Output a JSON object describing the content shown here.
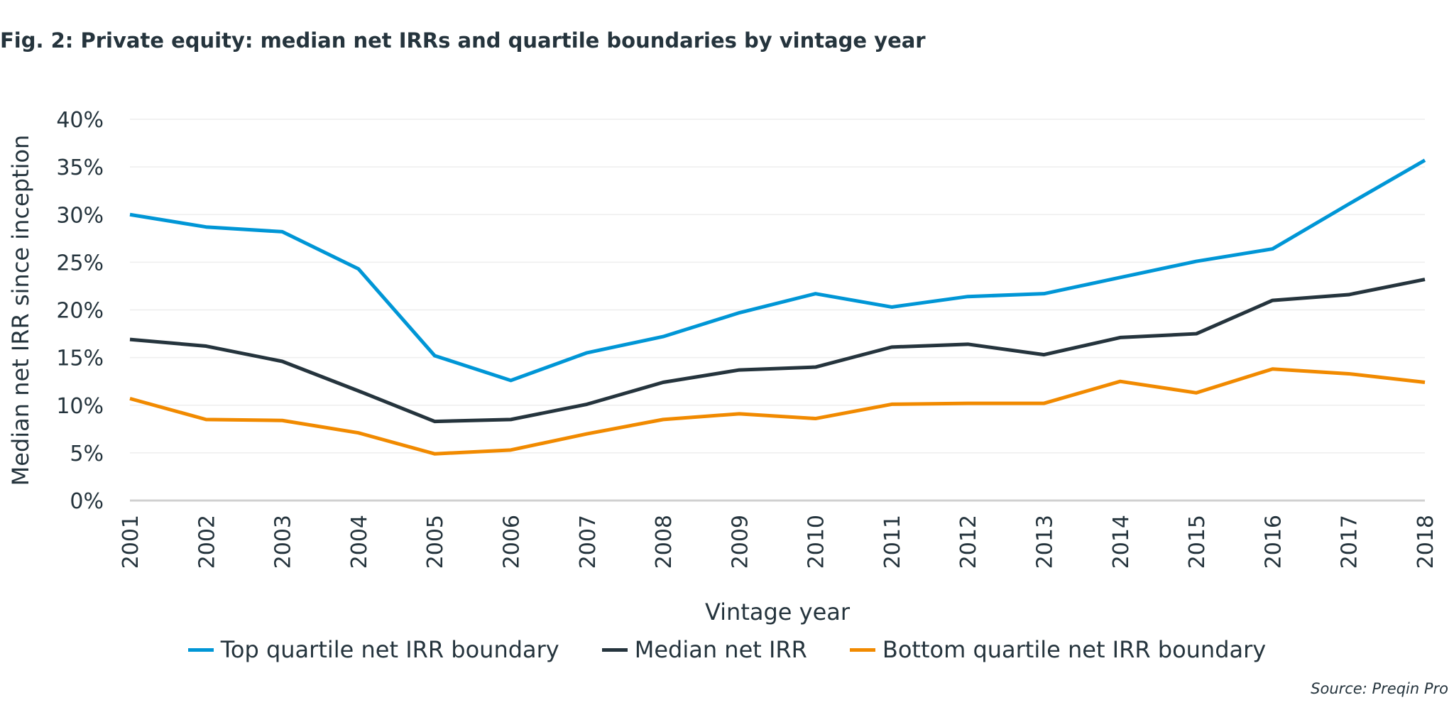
{
  "title": "Fig. 2: Private equity: median net IRRs and quartile boundaries by vintage year",
  "source": "Source: Preqin Pro",
  "chart_data": {
    "type": "line",
    "xlabel": "Vintage year",
    "ylabel": "Median net IRR since inception",
    "x": [
      "2001",
      "2002",
      "2003",
      "2004",
      "2005",
      "2006",
      "2007",
      "2008",
      "2009",
      "2010",
      "2011",
      "2012",
      "2013",
      "2014",
      "2015",
      "2016",
      "2017",
      "2018"
    ],
    "ylim": [
      0,
      40
    ],
    "yticks": [
      "0%",
      "5%",
      "10%",
      "15%",
      "20%",
      "25%",
      "30%",
      "35%",
      "40%"
    ],
    "grid": true,
    "legend_position": "bottom",
    "series": [
      {
        "name": "Top quartile net IRR boundary",
        "color": "#0096d6",
        "values": [
          30.0,
          28.7,
          28.2,
          24.3,
          15.2,
          12.6,
          15.5,
          17.2,
          19.7,
          21.7,
          20.3,
          21.4,
          21.7,
          23.4,
          25.1,
          26.4,
          31.1,
          35.7
        ]
      },
      {
        "name": "Median net IRR",
        "color": "#25343d",
        "values": [
          16.9,
          16.2,
          14.6,
          11.5,
          8.3,
          8.5,
          10.1,
          12.4,
          13.7,
          14.0,
          16.1,
          16.4,
          15.3,
          17.1,
          17.5,
          21.0,
          21.6,
          23.2
        ]
      },
      {
        "name": "Bottom quartile net IRR boundary",
        "color": "#f18a00",
        "values": [
          10.7,
          8.5,
          8.4,
          7.1,
          4.9,
          5.3,
          7.0,
          8.5,
          9.1,
          8.6,
          10.1,
          10.2,
          10.2,
          12.5,
          11.3,
          13.8,
          13.3,
          12.4
        ]
      }
    ]
  }
}
